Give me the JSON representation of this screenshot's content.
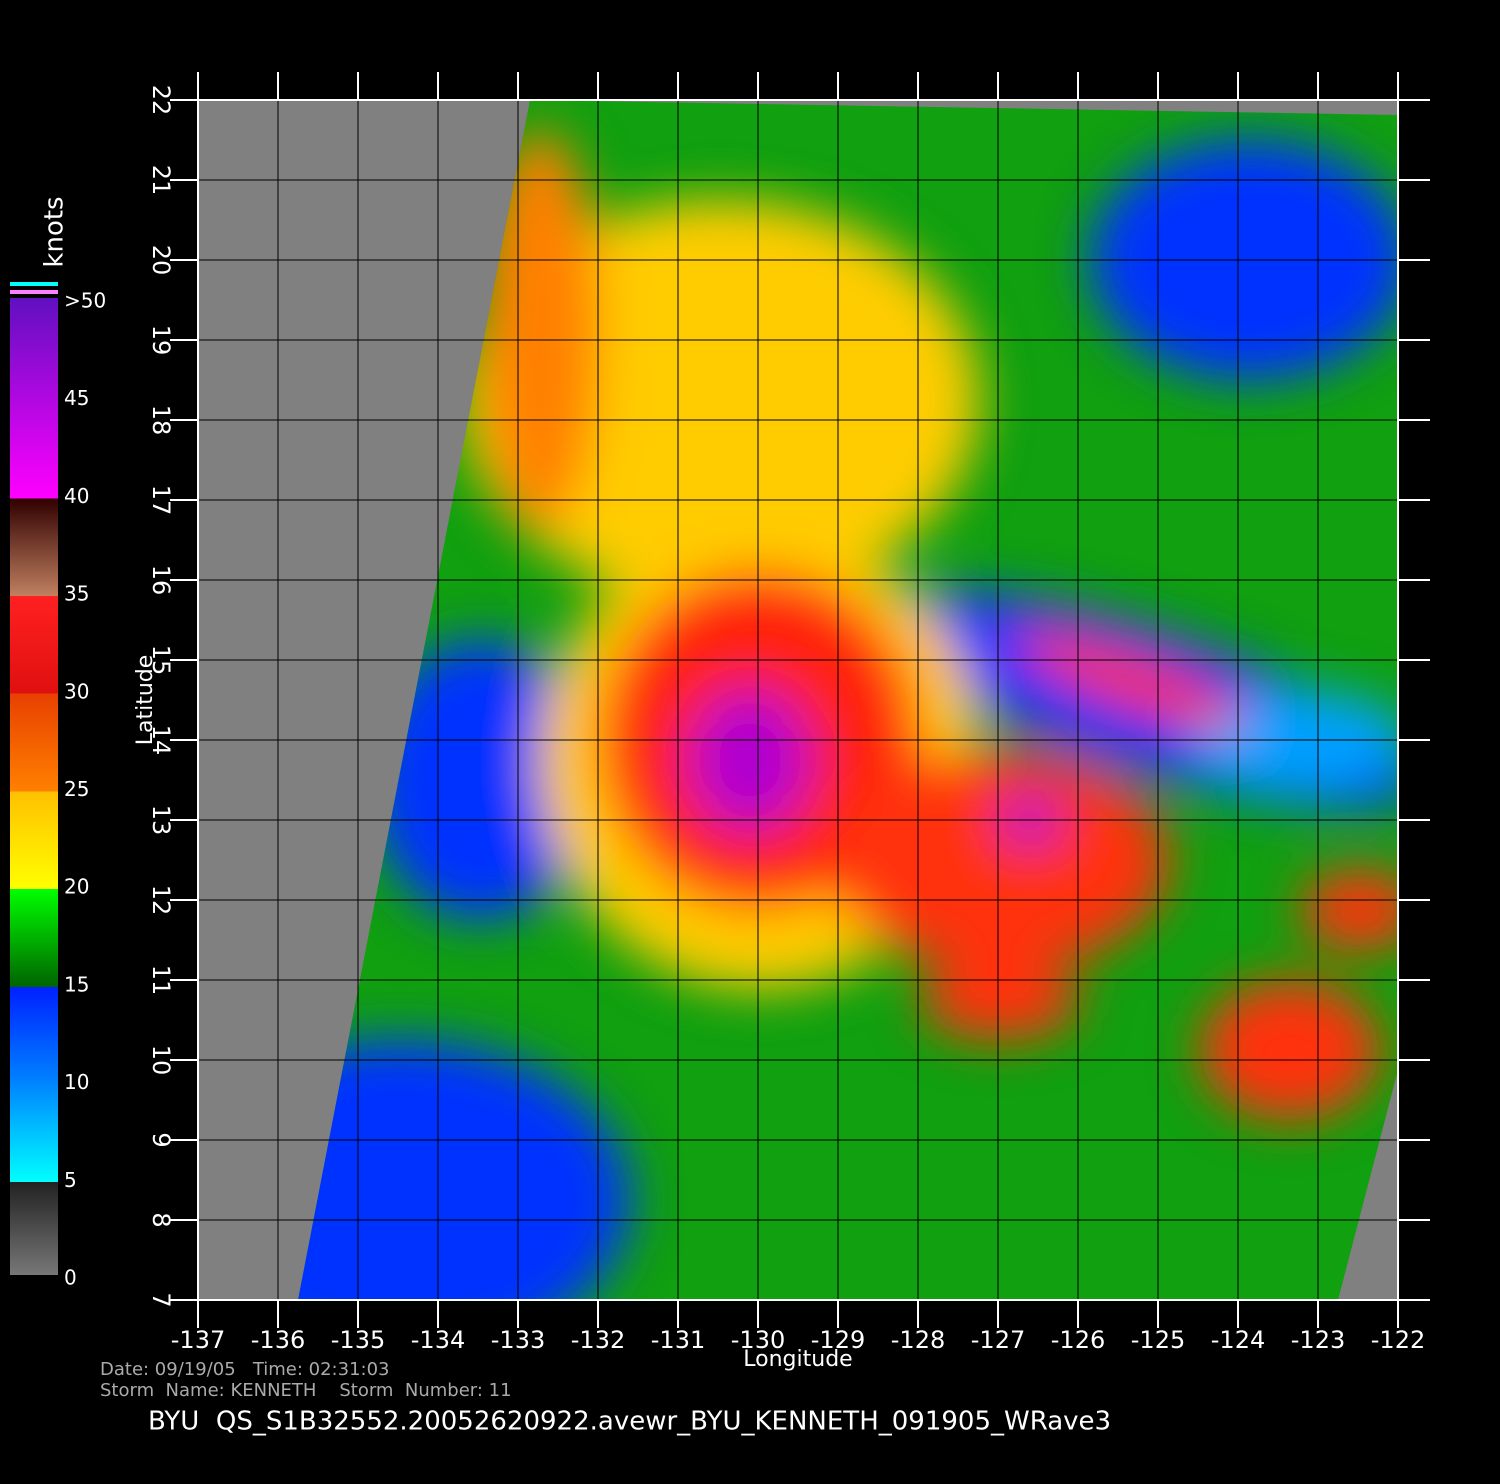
{
  "map": {
    "x_axis": {
      "label": "Longitude",
      "lim": [
        -137,
        -122
      ],
      "ticks": [
        -137,
        -136,
        -135,
        -134,
        -133,
        -132,
        -131,
        -130,
        -129,
        -128,
        -127,
        -126,
        -125,
        -124,
        -123,
        -122
      ]
    },
    "y_axis": {
      "label": "Latitude",
      "lim": [
        7,
        22
      ],
      "ticks": [
        7,
        8,
        9,
        10,
        11,
        12,
        13,
        14,
        15,
        16,
        17,
        18,
        19,
        20,
        21,
        22
      ]
    },
    "colorbar": {
      "label": "knots",
      "lim": [
        0,
        50
      ],
      "ticks": [
        0,
        5,
        10,
        15,
        20,
        25,
        30,
        35,
        40,
        45,
        {
          "value": 50,
          "label": ">50"
        }
      ]
    },
    "footer": {
      "date_line": "Date: 09/19/05   Time: 02:31:03",
      "storm_line": "Storm  Name: KENNETH    Storm  Number: 11",
      "title": "BYU  QS_S1B32552.20052620922.avewr_BYU_KENNETH_091905_WRave3"
    }
  }
}
